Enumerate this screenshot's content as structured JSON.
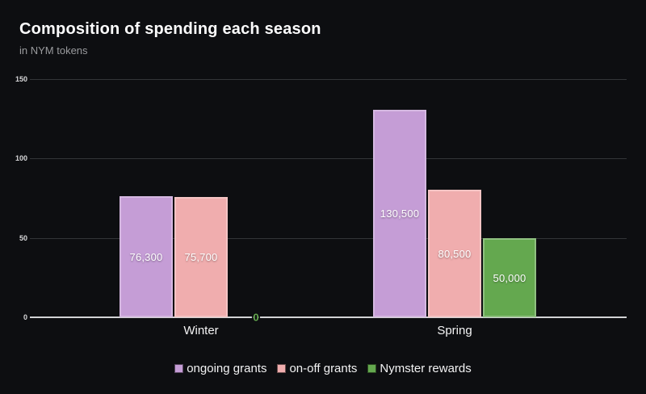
{
  "chart_data": {
    "type": "bar",
    "title": "Composition of spending each season",
    "subtitle": "in NYM tokens",
    "unit": "NYM tokens",
    "categories": [
      "Winter",
      "Spring"
    ],
    "series": [
      {
        "name": "ongoing grants",
        "color": "#c59dd6",
        "values": [
          76300,
          130500
        ],
        "value_labels": [
          "76,300",
          "130,500"
        ]
      },
      {
        "name": "on-off grants",
        "color": "#f0adae",
        "values": [
          75700,
          80500
        ],
        "value_labels": [
          "75,700",
          "80,500"
        ]
      },
      {
        "name": "Nymster rewards",
        "color": "#64a84f",
        "values": [
          0,
          50000
        ],
        "value_labels": [
          "0",
          "50,000"
        ]
      }
    ],
    "y_axis": {
      "ticks": [
        0,
        50,
        100,
        150
      ],
      "tick_labels": [
        "0",
        "50",
        "100",
        "150"
      ],
      "max": 150,
      "value_scale": 1000
    },
    "grid": true,
    "legend_position": "bottom",
    "colors": {
      "background": "#0d0e11",
      "gridline": "#333538",
      "axis_line": "#d2d3d5",
      "tick_text": "#d6d6d8",
      "value_label_text": "#ffffff",
      "category_text": "#f4f4f5",
      "title_text": "#fcfcfd",
      "subtitle_text": "#9a9b9e",
      "legend_text": "#f2f2f3"
    }
  }
}
